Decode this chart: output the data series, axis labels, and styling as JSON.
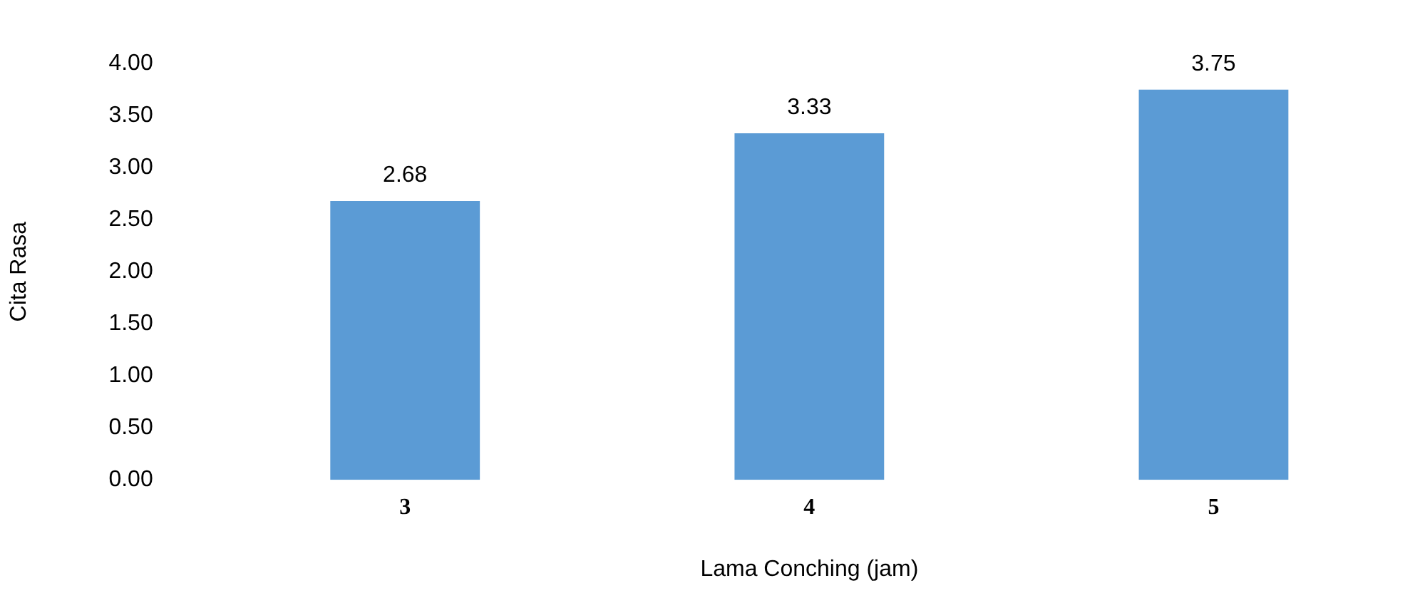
{
  "chart_data": {
    "type": "bar",
    "xlabel": "Lama Conching (jam)",
    "ylabel": "Cita Rasa",
    "categories": [
      "3",
      "4",
      "5"
    ],
    "values": [
      2.68,
      3.33,
      3.75
    ],
    "value_labels": [
      "2.68",
      "3.33",
      "3.75"
    ],
    "color": "#5b9bd5",
    "ylim": [
      0,
      4
    ],
    "yticks": [
      {
        "value": 0,
        "label": "0.00"
      },
      {
        "value": 0.5,
        "label": "0.50"
      },
      {
        "value": 1,
        "label": "1.00"
      },
      {
        "value": 1.5,
        "label": "1.50"
      },
      {
        "value": 2,
        "label": "2.00"
      },
      {
        "value": 2.5,
        "label": "2.50"
      },
      {
        "value": 3,
        "label": "3.00"
      },
      {
        "value": 3.5,
        "label": "3.50"
      },
      {
        "value": 4,
        "label": "4.00"
      }
    ],
    "grid": false,
    "legend": false
  }
}
